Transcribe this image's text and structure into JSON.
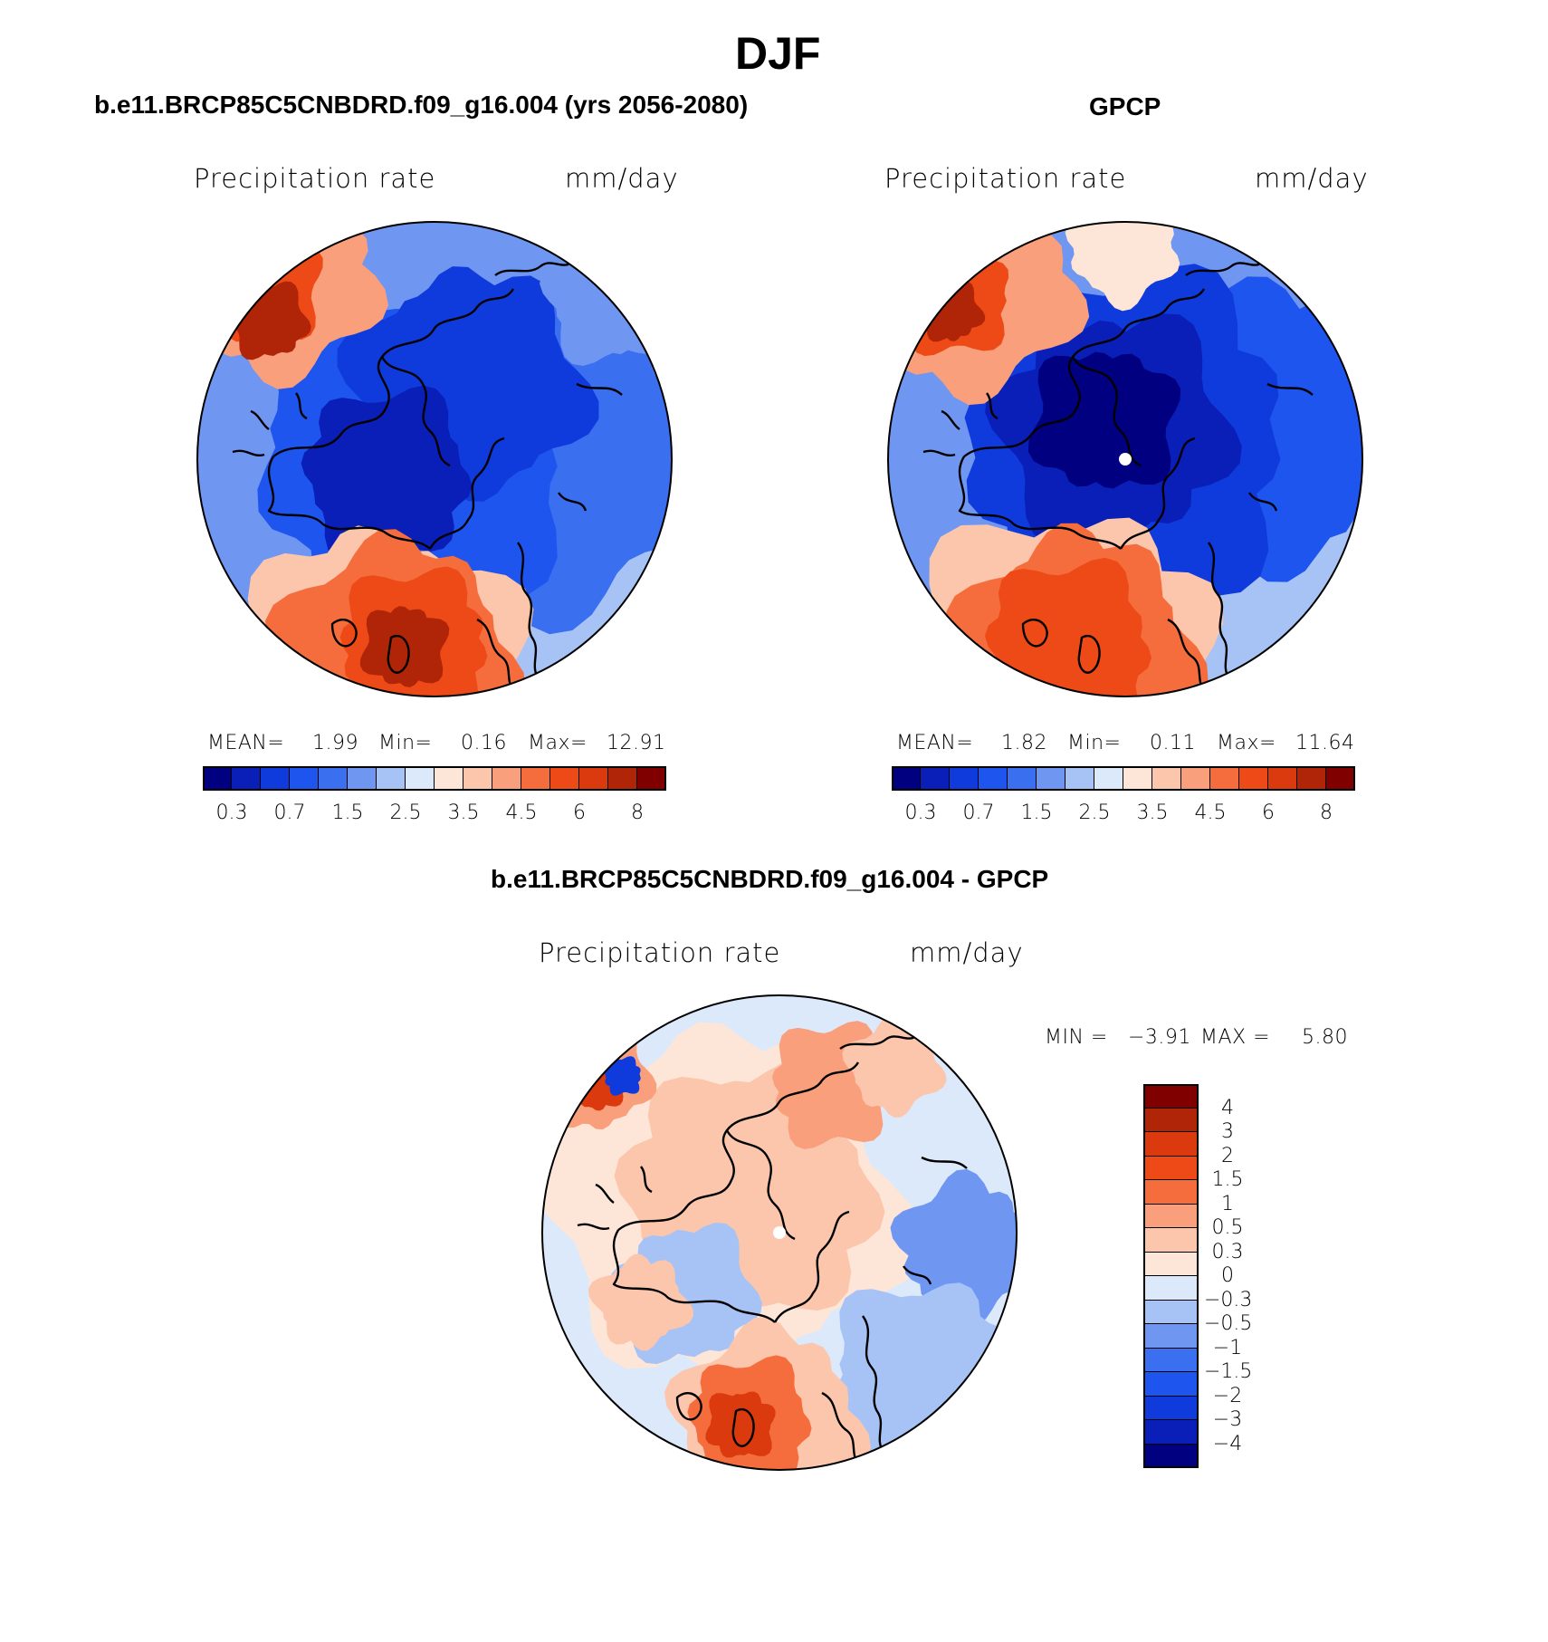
{
  "figure": {
    "title": "DJF"
  },
  "panels": [
    {
      "id": "model",
      "heading": "b.e11.BRCP85C5CNBDRD.f09_g16.004 (yrs 2056-2080)",
      "variable": "Precipitation  rate",
      "units": "mm/day",
      "stats": {
        "mean_label": "MEAN=",
        "mean": "1.99",
        "min_label": "Min=",
        "min": "0.16",
        "max_label": "Max=",
        "max": "12.91"
      },
      "colorbar_ticks": [
        "0.3",
        "0.7",
        "1.5",
        "2.5",
        "3.5",
        "4.5",
        "6",
        "8"
      ]
    },
    {
      "id": "obs",
      "heading": "GPCP",
      "variable": "Precipitation  rate",
      "units": "mm/day",
      "stats": {
        "mean_label": "MEAN=",
        "mean": "1.82",
        "min_label": "Min=",
        "min": "0.11",
        "max_label": "Max=",
        "max": "11.64"
      },
      "colorbar_ticks": [
        "0.3",
        "0.7",
        "1.5",
        "2.5",
        "3.5",
        "4.5",
        "6",
        "8"
      ]
    },
    {
      "id": "diff",
      "heading": "b.e11.BRCP85C5CNBDRD.f09_g16.004 - GPCP",
      "variable": "Precipitation  rate",
      "units": "mm/day",
      "stats": {
        "min_label": "MIN =",
        "min": "−3.91",
        "max_label": "MAX =",
        "max": "5.80"
      },
      "colorbar_ticks": [
        "4",
        "3",
        "2",
        "1.5",
        "1",
        "0.5",
        "0.3",
        "0",
        "−0.3",
        "−0.5",
        "−1",
        "−1.5",
        "−2",
        "−3",
        "−4"
      ]
    }
  ],
  "colors": {
    "abs_scale": [
      "#000080",
      "#0a1fb8",
      "#0f3bdc",
      "#1e55ee",
      "#3a6ff0",
      "#6f97f2",
      "#a7c3f6",
      "#dce9fb",
      "#fde6d8",
      "#fbc6ac",
      "#f99f7c",
      "#f56d3c",
      "#ee4a18",
      "#db3a0e",
      "#b02508",
      "#800000"
    ],
    "diff_scale": [
      "#800000",
      "#b02508",
      "#db3a0e",
      "#ee4a18",
      "#f56d3c",
      "#f99f7c",
      "#fbc6ac",
      "#fde6d8",
      "#dce9fb",
      "#a7c3f6",
      "#6f97f2",
      "#3a6ff0",
      "#1e55ee",
      "#0f3bdc",
      "#0a1fb8",
      "#000080"
    ]
  }
}
